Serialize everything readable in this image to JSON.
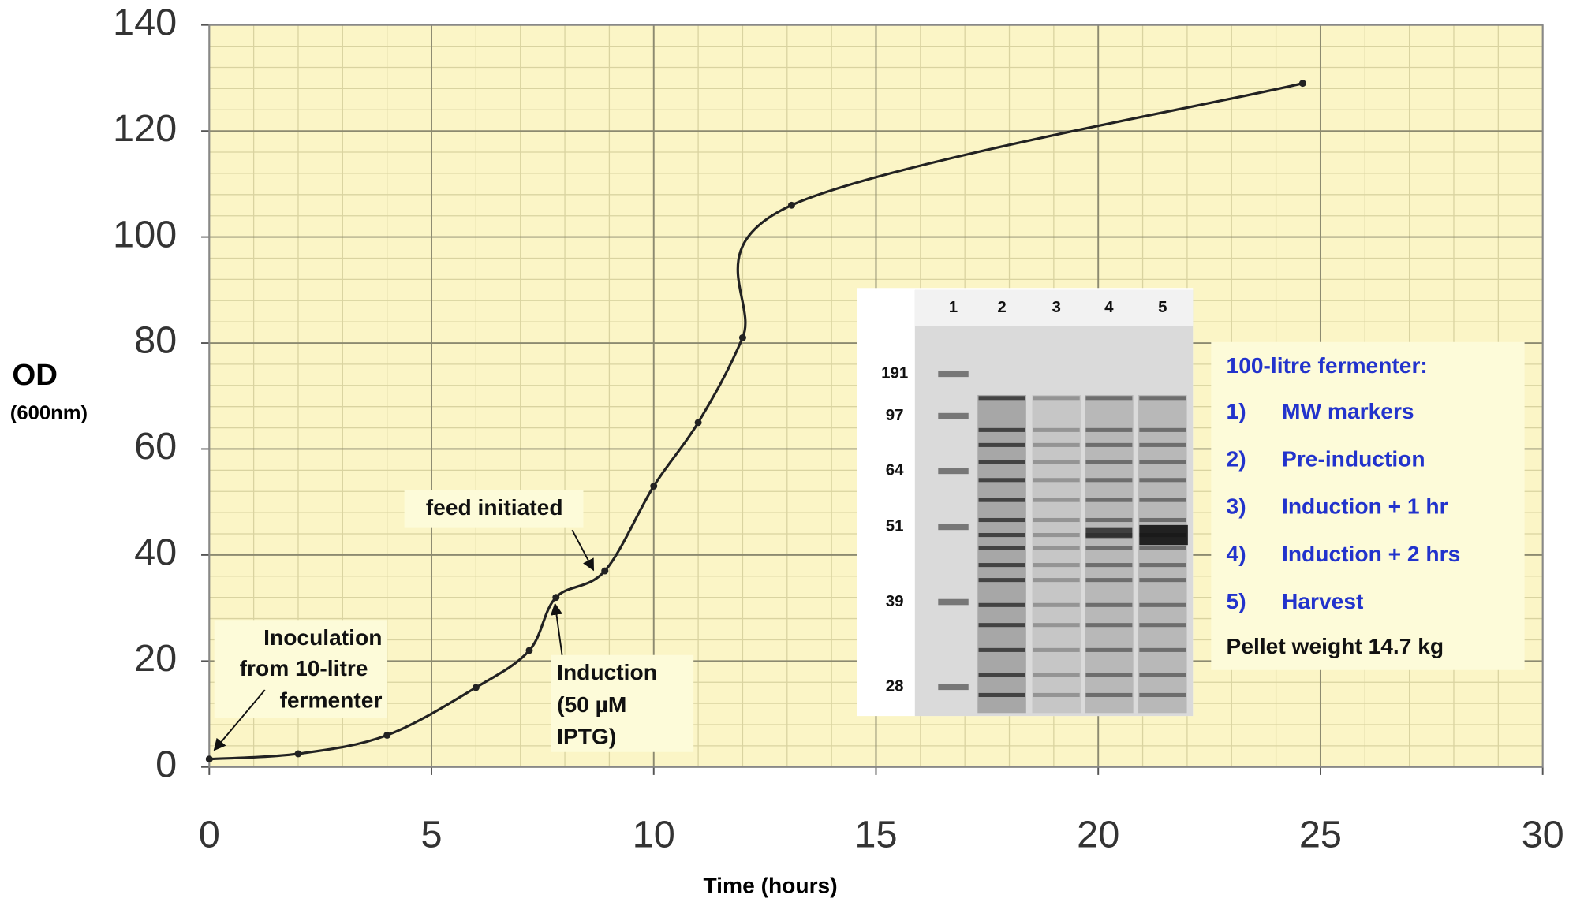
{
  "chart_data": {
    "type": "line",
    "x_label": "Time (hours)",
    "y_label": "OD",
    "y_label_sub": "(600nm)",
    "x": [
      0,
      2,
      4,
      6,
      7.2,
      7.8,
      8.9,
      10,
      11,
      12,
      13.1,
      24.6
    ],
    "values": [
      1.5,
      2.5,
      6,
      15,
      22,
      32,
      37,
      53,
      65,
      81,
      106,
      129
    ],
    "color": "#222222",
    "xlim": [
      0,
      30
    ],
    "ylim": [
      0,
      140
    ],
    "xticks": [
      0,
      5,
      10,
      15,
      20,
      25,
      30
    ],
    "yticks": [
      0,
      20,
      40,
      60,
      80,
      100,
      120,
      140
    ],
    "grid": true,
    "annotations": [
      {
        "lines": [
          "Inoculation",
          "from 10-litre",
          "fermenter"
        ]
      },
      {
        "lines": [
          "feed initiated"
        ]
      },
      {
        "lines": [
          "Induction",
          "(50 µM",
          "IPTG)"
        ]
      }
    ],
    "gel": {
      "lanes": [
        1,
        2,
        3,
        4,
        5
      ],
      "markers": [
        191,
        97,
        64,
        51,
        39,
        28
      ]
    },
    "legend_box": {
      "title": "100-litre fermenter:",
      "items": [
        {
          "number": "1)",
          "label": "MW markers"
        },
        {
          "number": "2)",
          "label": "Pre-induction"
        },
        {
          "number": "3)",
          "label": "Induction + 1 hr"
        },
        {
          "number": "4)",
          "label": "Induction + 2 hrs"
        },
        {
          "number": "5)",
          "label": "Harvest"
        }
      ],
      "footer": "Pellet weight 14.7 kg"
    }
  }
}
